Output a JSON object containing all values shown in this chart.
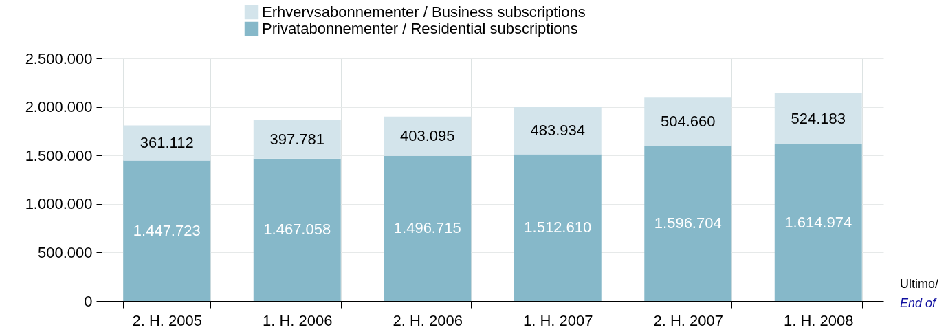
{
  "chart_data": {
    "type": "bar",
    "stacked": true,
    "categories": [
      "2. H. 2005",
      "1. H. 2006",
      "2. H. 2006",
      "1. H. 2007",
      "2. H. 2007",
      "1. H. 2008"
    ],
    "series": [
      {
        "name": "Privatabonnementer / Residential subscriptions",
        "color": "#86b8c9",
        "values": [
          1447723,
          1467058,
          1496715,
          1512610,
          1596704,
          1614974
        ],
        "value_labels": [
          "1.447.723",
          "1.467.058",
          "1.496.715",
          "1.512.610",
          "1.596.704",
          "1.614.974"
        ]
      },
      {
        "name": "Erhvervsabonnementer / Business subscriptions",
        "color": "#d3e4eb",
        "values": [
          361112,
          397781,
          403095,
          483934,
          504660,
          524183
        ],
        "value_labels": [
          "361.112",
          "397.781",
          "403.095",
          "483.934",
          "504.660",
          "524.183"
        ]
      }
    ],
    "ylim": [
      0,
      2500000
    ],
    "yticks": [
      0,
      {
        "value": 500000,
        "label": "500.000"
      },
      {
        "value": 1000000,
        "label": "1.000.000"
      },
      {
        "value": 1500000,
        "label": "1.500.000"
      },
      {
        "value": 2000000,
        "label": "2.000.000"
      },
      {
        "value": 2500000,
        "label": "2.500.000"
      }
    ],
    "grid": true,
    "legend": "top",
    "annotations": [
      "Ultimo/",
      "End of"
    ]
  }
}
